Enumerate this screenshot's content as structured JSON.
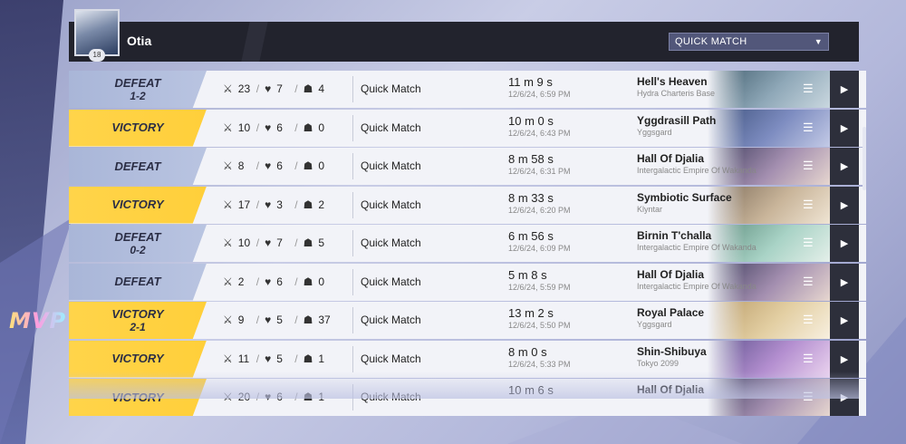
{
  "player": {
    "name": "Otia",
    "level": "18"
  },
  "filter": {
    "selected": "QUICK MATCH"
  },
  "mvp_label": "MVP",
  "colors": {
    "victory": "#ffd44a",
    "defeat": "#b1bddc",
    "header": "#22232d"
  },
  "icons": {
    "kills": "swords-icon",
    "deaths": "broken-heart-icon",
    "assists": "helmet-icon",
    "menu": "list-icon",
    "play": "play-icon"
  },
  "matches": [
    {
      "result": "DEFEAT",
      "score": "1-2",
      "kills": "23",
      "deaths": "7",
      "assists": "4",
      "mode": "Quick Match",
      "duration": "11 m 9 s",
      "time": "12/6/24, 6:59 PM",
      "map": "Hell's Heaven",
      "region": "Hydra Charteris Base",
      "thumb": [
        "#3d5a6a",
        "#8fa8b8",
        "#c9d7df"
      ]
    },
    {
      "result": "VICTORY",
      "score": "",
      "kills": "10",
      "deaths": "6",
      "assists": "0",
      "mode": "Quick Match",
      "duration": "10 m 0 s",
      "time": "12/6/24, 6:43 PM",
      "map": "Yggdrasill Path",
      "region": "Yggsgard",
      "thumb": [
        "#3b4f7a",
        "#7d8cc0",
        "#c3cae6"
      ]
    },
    {
      "result": "DEFEAT",
      "score": "",
      "kills": "8",
      "deaths": "6",
      "assists": "0",
      "mode": "Quick Match",
      "duration": "8 m 58 s",
      "time": "12/6/24, 6:31 PM",
      "map": "Hall Of Djalia",
      "region": "Intergalactic Empire Of Wakanda",
      "thumb": [
        "#3a3a5a",
        "#a48fb0",
        "#e6d6cf"
      ]
    },
    {
      "result": "VICTORY",
      "score": "",
      "kills": "17",
      "deaths": "3",
      "assists": "2",
      "mode": "Quick Match",
      "duration": "8 m 33 s",
      "time": "12/6/24, 6:20 PM",
      "map": "Symbiotic Surface",
      "region": "Klyntar",
      "thumb": [
        "#7b6a58",
        "#c9b59a",
        "#efe4d3"
      ]
    },
    {
      "result": "DEFEAT",
      "score": "0-2",
      "kills": "10",
      "deaths": "7",
      "assists": "5",
      "mode": "Quick Match",
      "duration": "6 m 56 s",
      "time": "12/6/24, 6:09 PM",
      "map": "Birnin T'challa",
      "region": "Intergalactic Empire Of Wakanda",
      "thumb": [
        "#5a8a7a",
        "#a9d3c6",
        "#e4efe9"
      ]
    },
    {
      "result": "DEFEAT",
      "score": "",
      "kills": "2",
      "deaths": "6",
      "assists": "0",
      "mode": "Quick Match",
      "duration": "5 m 8 s",
      "time": "12/6/24, 5:59 PM",
      "map": "Hall Of Djalia",
      "region": "Intergalactic Empire Of Wakanda",
      "thumb": [
        "#3a3a5a",
        "#a48fb0",
        "#e6d6cf"
      ]
    },
    {
      "result": "VICTORY",
      "score": "2-1",
      "kills": "9",
      "deaths": "5",
      "assists": "37",
      "mode": "Quick Match",
      "duration": "13 m 2 s",
      "time": "12/6/24, 5:50 PM",
      "map": "Royal Palace",
      "region": "Yggsgard",
      "thumb": [
        "#b89a66",
        "#e3cfa3",
        "#f7efdf"
      ]
    },
    {
      "result": "VICTORY",
      "score": "",
      "kills": "11",
      "deaths": "5",
      "assists": "1",
      "mode": "Quick Match",
      "duration": "8 m 0 s",
      "time": "12/6/24, 5:33 PM",
      "map": "Shin-Shibuya",
      "region": "Tokyo 2099",
      "thumb": [
        "#5a4f8a",
        "#b48fd0",
        "#ebd4ef"
      ]
    },
    {
      "result": "VICTORY",
      "score": "",
      "kills": "20",
      "deaths": "6",
      "assists": "1",
      "mode": "Quick Match",
      "duration": "10 m 6 s",
      "time": "",
      "map": "Hall Of Djalia",
      "region": "",
      "thumb": [
        "#3a3a5a",
        "#a48fb0",
        "#e6d6cf"
      ]
    }
  ]
}
